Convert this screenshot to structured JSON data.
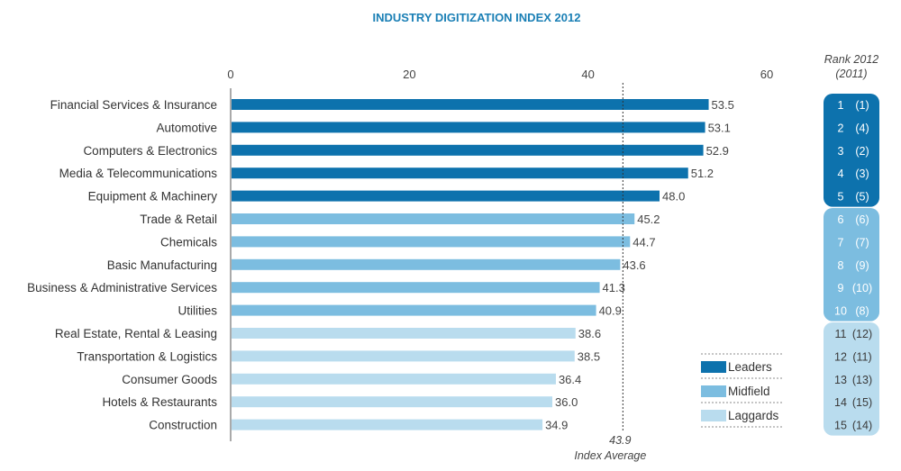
{
  "chart_data": {
    "type": "bar",
    "orientation": "horizontal",
    "title": "INDUSTRY DIGITIZATION INDEX 2012",
    "xlim": [
      0,
      60
    ],
    "x_ticks": [
      "0",
      "20",
      "40",
      "60"
    ],
    "grid": false,
    "categories": [
      "Financial Services & Insurance",
      "Automotive",
      "Computers & Electronics",
      "Media & Telecommunications",
      "Equipment & Machinery",
      "Trade & Retail",
      "Chemicals",
      "Basic Manufacturing",
      "Business & Administrative Services",
      "Utilities",
      "Real Estate, Rental & Leasing",
      "Transportation & Logistics",
      "Consumer Goods",
      "Hotels & Restaurants",
      "Construction"
    ],
    "values": [
      53.5,
      53.1,
      52.9,
      51.2,
      48.0,
      45.2,
      44.7,
      43.6,
      41.3,
      40.9,
      38.6,
      38.5,
      36.4,
      36.0,
      34.9
    ],
    "value_labels": [
      "53.5",
      "53.1",
      "52.9",
      "51.2",
      "48.0",
      "45.2",
      "44.7",
      "43.6",
      "41.3",
      "40.9",
      "38.6",
      "38.5",
      "36.4",
      "36.0",
      "34.9"
    ],
    "groups": [
      "Leaders",
      "Leaders",
      "Leaders",
      "Leaders",
      "Leaders",
      "Midfield",
      "Midfield",
      "Midfield",
      "Midfield",
      "Midfield",
      "Laggards",
      "Laggards",
      "Laggards",
      "Laggards",
      "Laggards"
    ],
    "group_colors": {
      "Leaders": "#0d72ad",
      "Midfield": "#7cbde0",
      "Laggards": "#b9dcee"
    },
    "legend": {
      "placement": "bottom-right",
      "entries": [
        "Leaders",
        "Midfield",
        "Laggards"
      ]
    },
    "reference_line": {
      "value": 43.9,
      "label_value": "43.9",
      "label_text": "Index Average",
      "style": "dotted"
    },
    "rank_header": [
      "Rank 2012",
      "(2011)"
    ],
    "ranks_2012": [
      "1",
      "2",
      "3",
      "4",
      "5",
      "6",
      "7",
      "8",
      "9",
      "10",
      "11",
      "12",
      "13",
      "14",
      "15"
    ],
    "ranks_2011": [
      "(1)",
      "(4)",
      "(2)",
      "(3)",
      "(5)",
      "(6)",
      "(7)",
      "(9)",
      "(10)",
      "(8)",
      "(12)",
      "(11)",
      "(13)",
      "(15)",
      "(14)"
    ]
  }
}
